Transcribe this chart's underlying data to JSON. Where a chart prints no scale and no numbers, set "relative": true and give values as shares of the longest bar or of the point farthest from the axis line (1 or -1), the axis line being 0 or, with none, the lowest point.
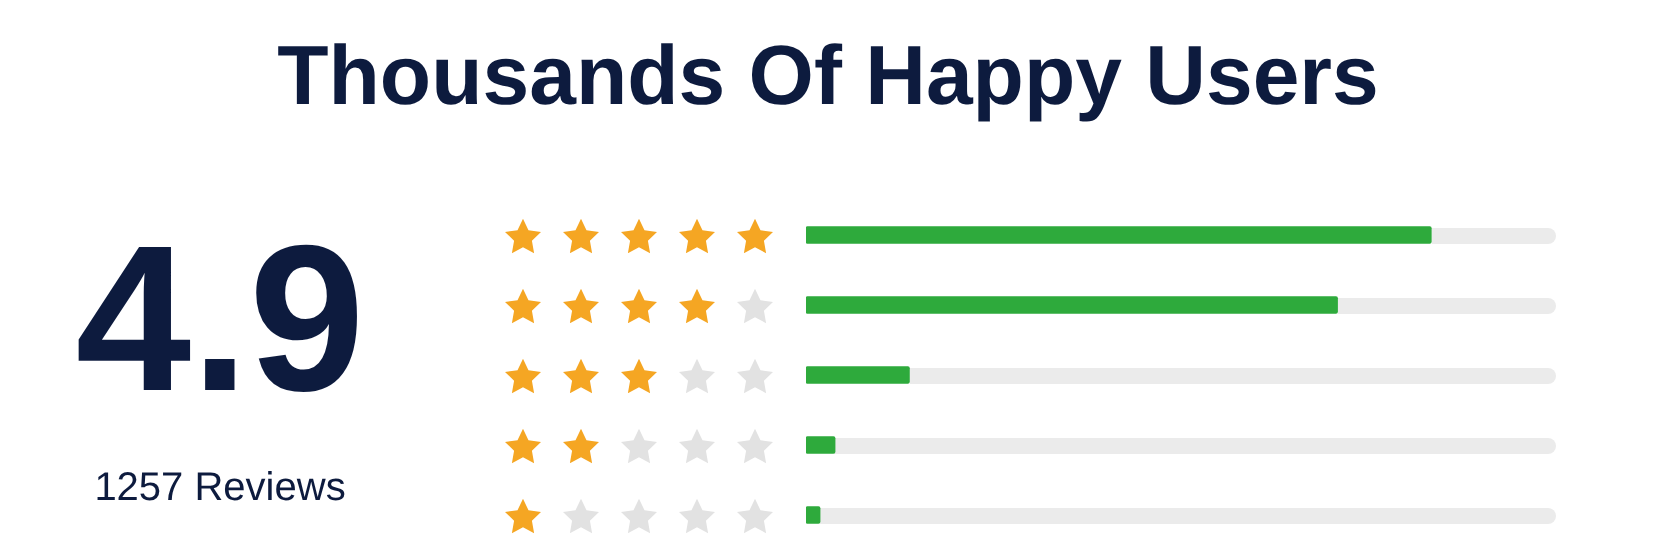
{
  "chart_data": {
    "type": "bar",
    "orientation": "horizontal",
    "relative": true,
    "title": "Thousands Of Happy Users",
    "annotations": [
      "4.9",
      "1257 Reviews"
    ],
    "categories": [
      null,
      null,
      null,
      null,
      null
    ],
    "values": [
      1,
      0.85,
      0.165,
      0.046,
      0.022
    ],
    "color": "#2eaa3c",
    "legend": false
  }
}
